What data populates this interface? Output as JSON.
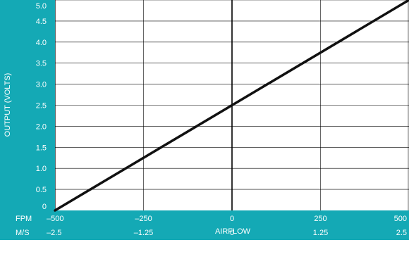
{
  "chart_data": {
    "type": "line",
    "title": "",
    "xlabel": "AIRFLOW",
    "ylabel": "OUTPUT (VOLTS)",
    "x_unit_rows": [
      {
        "unit": "FPM",
        "ticks": [
          "–500",
          "–250",
          "0",
          "250",
          "500"
        ]
      },
      {
        "unit": "M/S",
        "ticks": [
          "–2.5",
          "–1.25",
          "0",
          "1.25",
          "2.5"
        ]
      }
    ],
    "x_ticks": [
      -500,
      -250,
      0,
      250,
      500
    ],
    "y_ticks": [
      {
        "value": 0,
        "label": "0"
      },
      {
        "value": 0.5,
        "label": "0.5"
      },
      {
        "value": 1.0,
        "label": "1.0"
      },
      {
        "value": 1.5,
        "label": "1.5"
      },
      {
        "value": 2.0,
        "label": "2.0"
      },
      {
        "value": 2.5,
        "label": "2.5"
      },
      {
        "value": 3.0,
        "label": "3.0"
      },
      {
        "value": 3.5,
        "label": "3.5"
      },
      {
        "value": 4.0,
        "label": "4.0"
      },
      {
        "value": 4.5,
        "label": "4.5"
      },
      {
        "value": 5.0,
        "label": "5.0"
      }
    ],
    "xlim": [
      -500,
      500
    ],
    "ylim": [
      0,
      5.0
    ],
    "grid": true,
    "series": [
      {
        "x": [
          -500,
          500
        ],
        "y": [
          0,
          5.0
        ]
      }
    ],
    "colors": {
      "frame": "#14a9b5",
      "plot_bg": "#ffffff",
      "grid": "#000000",
      "line": "#111111",
      "text": "#ffffff"
    }
  }
}
